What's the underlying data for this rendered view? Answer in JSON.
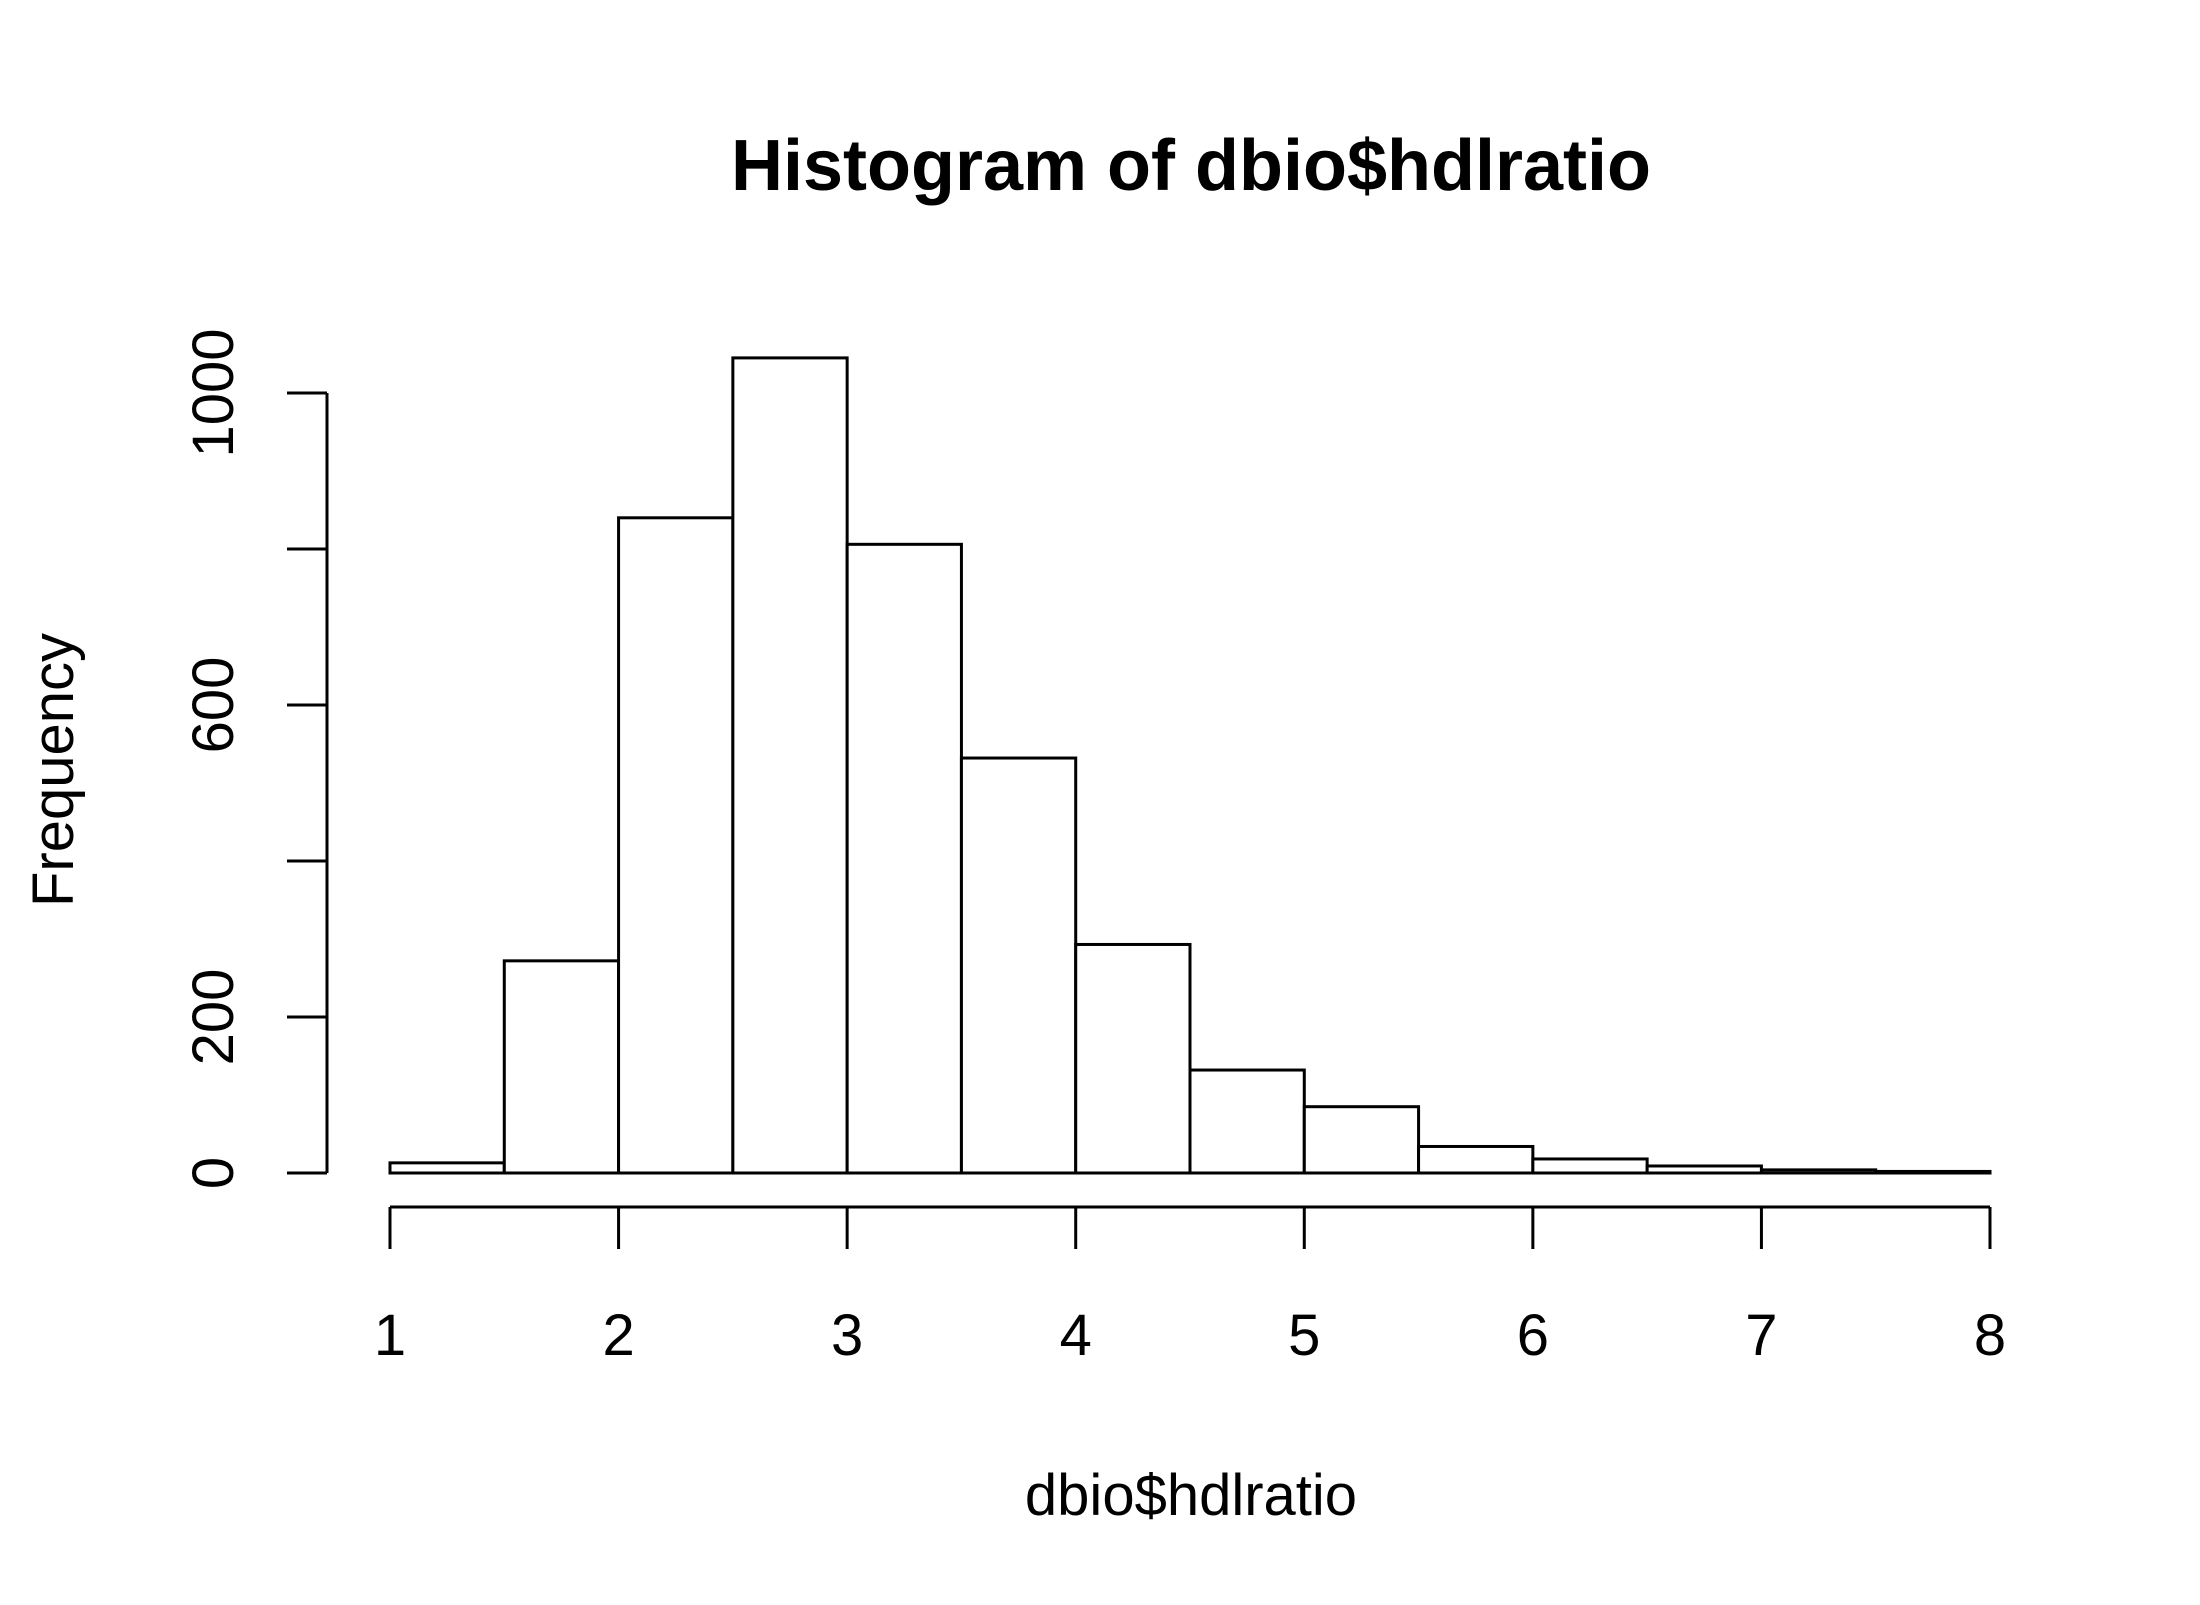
{
  "chart_data": {
    "type": "bar",
    "title": "Histogram of dbio$hdlratio",
    "xlabel": "dbio$hdlratio",
    "ylabel": "Frequency",
    "bins": [
      {
        "start": 1.0,
        "end": 1.5,
        "count": 13
      },
      {
        "start": 1.5,
        "end": 2.0,
        "count": 272
      },
      {
        "start": 2.0,
        "end": 2.5,
        "count": 840
      },
      {
        "start": 2.5,
        "end": 3.0,
        "count": 1045
      },
      {
        "start": 3.0,
        "end": 3.5,
        "count": 806
      },
      {
        "start": 3.5,
        "end": 4.0,
        "count": 532
      },
      {
        "start": 4.0,
        "end": 4.5,
        "count": 293
      },
      {
        "start": 4.5,
        "end": 5.0,
        "count": 132
      },
      {
        "start": 5.0,
        "end": 5.5,
        "count": 85
      },
      {
        "start": 5.5,
        "end": 6.0,
        "count": 34
      },
      {
        "start": 6.0,
        "end": 6.5,
        "count": 18
      },
      {
        "start": 6.5,
        "end": 7.0,
        "count": 9
      },
      {
        "start": 7.0,
        "end": 7.5,
        "count": 4
      },
      {
        "start": 7.5,
        "end": 8.0,
        "count": 2
      }
    ],
    "xlim": [
      1,
      8
    ],
    "ylim": [
      0,
      1000
    ],
    "x_ticks": [
      1,
      2,
      3,
      4,
      5,
      6,
      7,
      8
    ],
    "x_tick_labels": [
      "1",
      "2",
      "3",
      "4",
      "5",
      "6",
      "7",
      "8"
    ],
    "y_ticks": [
      0,
      200,
      400,
      600,
      800,
      1000
    ],
    "y_tick_labels": [
      "0",
      "200",
      "",
      "600",
      "",
      "1000"
    ],
    "grid": false,
    "legend": "none",
    "colors": {
      "bar_fill": "#ffffff",
      "bar_stroke": "#000000",
      "background": "#ffffff"
    }
  }
}
